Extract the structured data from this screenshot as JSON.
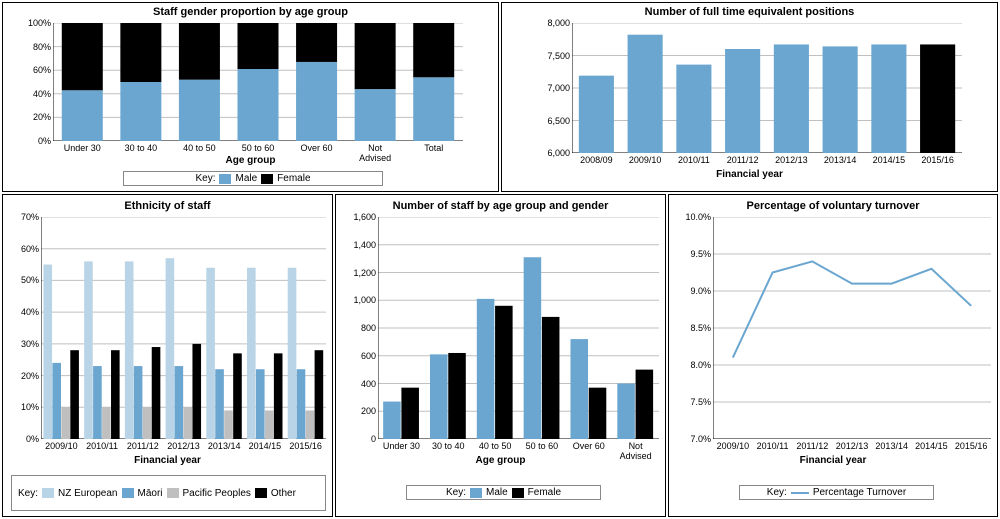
{
  "colors": {
    "male": "#6aa6cf",
    "female": "#000000",
    "nz_euro": "#b9d4e6",
    "maori": "#6aa6cf",
    "pacific": "#bfbfbf",
    "other": "#000000",
    "line": "#6aa6cf",
    "grid": "#c0c0c0",
    "border": "#000000",
    "bg": "#ffffff"
  },
  "row1": {
    "stacked": {
      "title": "Staff gender proportion by age group",
      "xlabel": "Age group",
      "categories": [
        "Under 30",
        "30 to 40",
        "40 to 50",
        "50 to 60",
        "Over 60",
        "Not Advised",
        "Total"
      ],
      "series": [
        {
          "name": "Male",
          "key": "male",
          "values": [
            43,
            50,
            52,
            61,
            67,
            44,
            54
          ]
        },
        {
          "name": "Female",
          "key": "female",
          "values": [
            57,
            50,
            48,
            39,
            33,
            56,
            46
          ]
        }
      ],
      "ylim": [
        0,
        100
      ],
      "ystep": 20,
      "ysuffix": "%",
      "legend_prefix": "Key:",
      "legend": [
        "Male",
        "Female"
      ]
    },
    "fte": {
      "title": "Number of full time equivalent positions",
      "xlabel": "Financial year",
      "categories": [
        "2008/09",
        "2009/10",
        "2010/11",
        "2011/12",
        "2012/13",
        "2013/14",
        "2014/15",
        "2015/16"
      ],
      "values": [
        7190,
        7820,
        7360,
        7600,
        7670,
        7640,
        7670,
        7670
      ],
      "highlight_index": 7,
      "bar_color": "male",
      "highlight_color": "female",
      "ylim": [
        6000,
        8000
      ],
      "ystep": 500,
      "yformat": "comma"
    }
  },
  "row2": {
    "ethnicity": {
      "title": "Ethnicity of staff",
      "xlabel": "Financial year",
      "categories": [
        "2009/10",
        "2010/11",
        "2011/12",
        "2012/13",
        "2013/14",
        "2014/15",
        "2015/16"
      ],
      "series": [
        {
          "name": "NZ European",
          "key": "nz_euro",
          "values": [
            55,
            56,
            56,
            57,
            54,
            54,
            54
          ]
        },
        {
          "name": "Māori",
          "key": "maori",
          "values": [
            24,
            23,
            23,
            23,
            22,
            22,
            22
          ]
        },
        {
          "name": "Pacific Peoples",
          "key": "pacific",
          "values": [
            10,
            10,
            10,
            10,
            9,
            9,
            9
          ]
        },
        {
          "name": "Other",
          "key": "other",
          "values": [
            28,
            28,
            29,
            30,
            27,
            27,
            28
          ]
        }
      ],
      "ylim": [
        0,
        70
      ],
      "ystep": 10,
      "ysuffix": "%",
      "legend_prefix": "Key:",
      "legend": [
        "NZ European",
        "Māori",
        "Pacific Peoples",
        "Other"
      ]
    },
    "age_gender": {
      "title": "Number of staff by age group and gender",
      "xlabel": "Age group",
      "categories": [
        "Under 30",
        "30 to 40",
        "40 to 50",
        "50 to 60",
        "Over 60",
        "Not Advised"
      ],
      "series": [
        {
          "name": "Male",
          "key": "male",
          "values": [
            270,
            610,
            1010,
            1310,
            720,
            400
          ]
        },
        {
          "name": "Female",
          "key": "female",
          "values": [
            370,
            620,
            960,
            880,
            370,
            500
          ]
        }
      ],
      "ylim": [
        0,
        1600
      ],
      "ystep": 200,
      "yformat": "comma",
      "legend_prefix": "Key:",
      "legend": [
        "Male",
        "Female"
      ]
    },
    "turnover": {
      "title": "Percentage of voluntary turnover",
      "xlabel": "Financial year",
      "categories": [
        "2009/10",
        "2010/11",
        "2011/12",
        "2012/13",
        "2013/14",
        "2014/15",
        "2015/16"
      ],
      "values": [
        8.1,
        9.25,
        9.4,
        9.1,
        9.1,
        9.3,
        8.8
      ],
      "ylim": [
        7.0,
        10.0
      ],
      "ystep": 0.5,
      "ysuffix": "%",
      "decimals": 1,
      "legend_prefix": "Key:",
      "legend": [
        "Percentage Turnover"
      ]
    }
  }
}
